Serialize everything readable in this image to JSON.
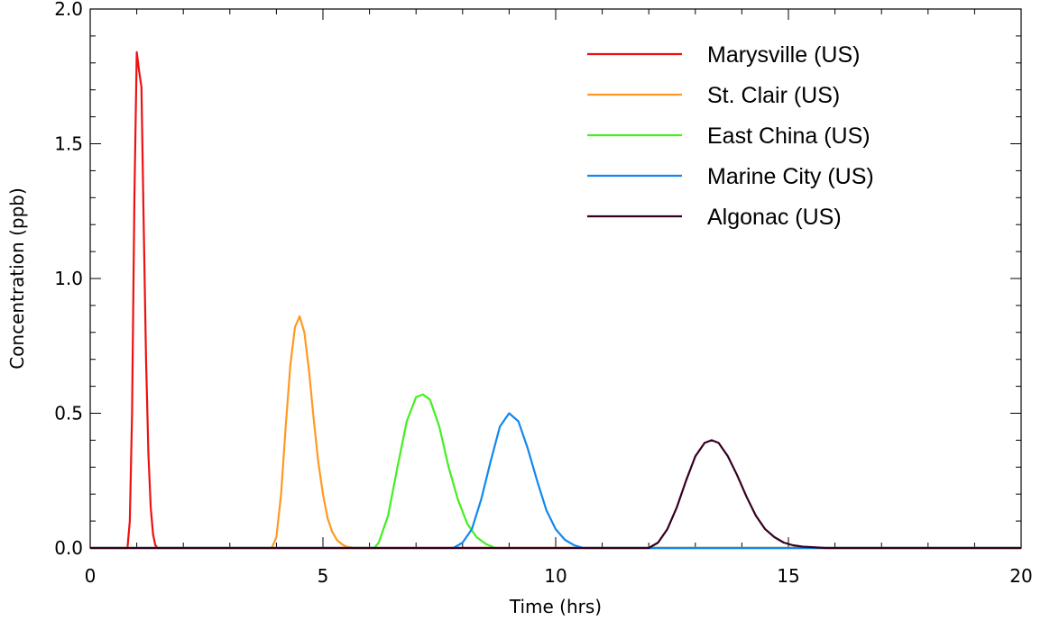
{
  "chart_data": {
    "type": "line",
    "xlabel": "Time (hrs)",
    "ylabel": "Concentration (ppb)",
    "xlim": [
      0,
      20
    ],
    "ylim": [
      0,
      2.0
    ],
    "x_ticks": [
      0,
      5,
      10,
      15,
      20
    ],
    "x_tick_labels": [
      "0",
      "5",
      "10",
      "15",
      "20"
    ],
    "y_ticks": [
      0,
      0.5,
      1.0,
      1.5,
      2.0
    ],
    "y_tick_labels": [
      "0.0",
      "0.5",
      "1.0",
      "1.5",
      "2.0"
    ],
    "x_minor_step": 1,
    "y_minor_step": 0.1,
    "grid": false,
    "legend_position": "top-right",
    "series": [
      {
        "name": "Marysville (US)",
        "color": "#ee1111",
        "x": [
          0.0,
          0.5,
          0.8,
          0.85,
          0.9,
          0.95,
          1.0,
          1.05,
          1.1,
          1.15,
          1.2,
          1.25,
          1.3,
          1.35,
          1.4,
          1.45,
          1.5,
          20.0
        ],
        "y": [
          0,
          0,
          0,
          0.1,
          0.5,
          1.3,
          1.84,
          1.77,
          1.71,
          1.2,
          0.7,
          0.35,
          0.15,
          0.05,
          0.01,
          0,
          0,
          0
        ]
      },
      {
        "name": "St. Clair (US)",
        "color": "#ff9922",
        "x": [
          0.0,
          3.9,
          4.0,
          4.1,
          4.2,
          4.3,
          4.4,
          4.5,
          4.6,
          4.7,
          4.8,
          4.9,
          5.0,
          5.1,
          5.2,
          5.3,
          5.4,
          5.5,
          5.6,
          5.7,
          20.0
        ],
        "y": [
          0,
          0,
          0.04,
          0.2,
          0.45,
          0.68,
          0.82,
          0.86,
          0.8,
          0.66,
          0.48,
          0.32,
          0.2,
          0.11,
          0.06,
          0.03,
          0.015,
          0.005,
          0.002,
          0,
          0
        ]
      },
      {
        "name": "East China (US)",
        "color": "#44ee22",
        "x": [
          0.0,
          6.1,
          6.2,
          6.4,
          6.6,
          6.8,
          7.0,
          7.15,
          7.3,
          7.5,
          7.7,
          7.9,
          8.1,
          8.3,
          8.5,
          8.7,
          20.0
        ],
        "y": [
          0,
          0,
          0.02,
          0.12,
          0.3,
          0.47,
          0.56,
          0.57,
          0.55,
          0.45,
          0.3,
          0.18,
          0.09,
          0.04,
          0.015,
          0,
          0
        ]
      },
      {
        "name": "Marine City (US)",
        "color": "#1188ee",
        "x": [
          0.0,
          7.8,
          8.0,
          8.2,
          8.4,
          8.6,
          8.8,
          9.0,
          9.2,
          9.4,
          9.6,
          9.8,
          10.0,
          10.2,
          10.4,
          10.6,
          20.0
        ],
        "y": [
          0,
          0,
          0.02,
          0.07,
          0.18,
          0.32,
          0.45,
          0.5,
          0.47,
          0.37,
          0.25,
          0.14,
          0.07,
          0.03,
          0.01,
          0,
          0
        ]
      },
      {
        "name": "Algonac (US)",
        "color": "#330022",
        "x": [
          0.0,
          12.0,
          12.2,
          12.4,
          12.6,
          12.8,
          13.0,
          13.2,
          13.35,
          13.5,
          13.7,
          13.9,
          14.1,
          14.3,
          14.5,
          14.7,
          14.9,
          15.1,
          15.3,
          15.6,
          15.8,
          20.0
        ],
        "y": [
          0,
          0,
          0.02,
          0.07,
          0.15,
          0.25,
          0.34,
          0.39,
          0.4,
          0.39,
          0.34,
          0.27,
          0.19,
          0.12,
          0.07,
          0.04,
          0.02,
          0.01,
          0.005,
          0.002,
          0,
          0
        ]
      }
    ]
  }
}
